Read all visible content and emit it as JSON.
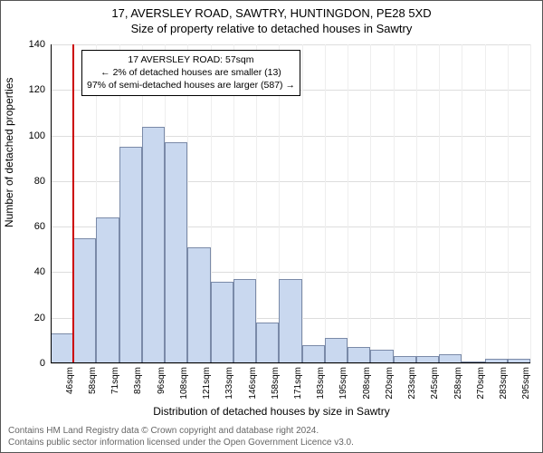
{
  "title": "17, AVERSLEY ROAD, SAWTRY, HUNTINGDON, PE28 5XD",
  "subtitle": "Size of property relative to detached houses in Sawtry",
  "ylabel": "Number of detached properties",
  "xlabel": "Distribution of detached houses by size in Sawtry",
  "footer_line1": "Contains HM Land Registry data © Crown copyright and database right 2024.",
  "footer_line2": "Contains public sector information licensed under the Open Government Licence v3.0.",
  "annotation": {
    "line1": "17 AVERSLEY ROAD: 57sqm",
    "line2": "← 2% of detached houses are smaller (13)",
    "line3": "97% of semi-detached houses are larger (587) →"
  },
  "chart": {
    "type": "histogram",
    "ylim": [
      0,
      140
    ],
    "ytick_step": 20,
    "yticks": [
      0,
      20,
      40,
      60,
      80,
      100,
      120,
      140
    ],
    "xticks": [
      "46sqm",
      "58sqm",
      "71sqm",
      "83sqm",
      "96sqm",
      "108sqm",
      "121sqm",
      "133sqm",
      "146sqm",
      "158sqm",
      "171sqm",
      "183sqm",
      "195sqm",
      "208sqm",
      "220sqm",
      "233sqm",
      "245sqm",
      "258sqm",
      "270sqm",
      "283sqm",
      "295sqm"
    ],
    "bars": [
      13,
      55,
      64,
      95,
      104,
      97,
      51,
      36,
      37,
      18,
      37,
      8,
      11,
      7,
      6,
      3,
      3,
      4,
      0,
      2,
      2
    ],
    "bar_fill": "#c9d8ef",
    "bar_stroke": "#7a8aa8",
    "grid_color": "#dddddd",
    "background": "#ffffff",
    "marker_position": 1,
    "marker_color": "#cc0000",
    "title_fontsize": 13,
    "label_fontsize": 12,
    "tick_fontsize": 11
  }
}
